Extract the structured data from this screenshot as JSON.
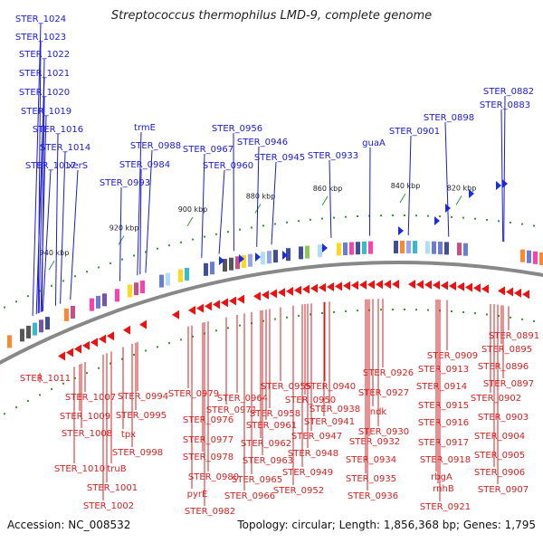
{
  "title": "Streptococcus thermophilus LMD-9, complete genome",
  "accession": "Accession: NC_008532",
  "topology": "Topology: circular; Length: 1,856,368 bp; Genes: 1,795",
  "colors": {
    "top_label": "#1a1ad6",
    "bottom_label": "#d42020",
    "backbone": "#888888",
    "tick": "#2e9a2e"
  },
  "ruler_ticks": [
    "820 kbp",
    "840 kbp",
    "860 kbp",
    "880 kbp",
    "900 kbp",
    "920 kbp",
    "940 kbp"
  ],
  "top_genes": [
    "STER_0882",
    "STER_0883",
    "STER_0898",
    "STER_0901",
    "guaA",
    "STER_0933",
    "STER_0945",
    "STER_0946",
    "STER_0956",
    "STER_0960",
    "STER_0967",
    "STER_0984",
    "STER_0988",
    "trmE",
    "STER_0993",
    "xerS",
    "STER_1014",
    "STER_1016",
    "STER_1017",
    "STER_1019",
    "STER_1020",
    "STER_1021",
    "STER_1022",
    "STER_1023",
    "STER_1024"
  ],
  "bottom_genes": [
    "STER_0891",
    "STER_0895",
    "STER_0896",
    "STER_0897",
    "STER_0902",
    "STER_0903",
    "STER_0904",
    "STER_0905",
    "STER_0906",
    "STER_0907",
    "STER_0909",
    "STER_0913",
    "STER_0914",
    "STER_0915",
    "STER_0916",
    "STER_0917",
    "STER_0918",
    "rbgA",
    "rnhB",
    "STER_0921",
    "STER_0926",
    "STER_0927",
    "ndk",
    "STER_0930",
    "STER_0932",
    "STER_0934",
    "STER_0935",
    "STER_0936",
    "STER_0938",
    "STER_0940",
    "STER_0941",
    "STER_0947",
    "STER_0948",
    "STER_0949",
    "STER_0950",
    "STER_0952",
    "STER_0955",
    "STER_0958",
    "STER_0961",
    "STER_0962",
    "STER_0963",
    "STER_0964",
    "STER_0965",
    "STER_0966",
    "STER_0971",
    "STER_0976",
    "STER_0977",
    "STER_0978",
    "STER_0979",
    "STER_0980",
    "pyrE",
    "STER_0982",
    "STER_0994",
    "STER_0995",
    "STER_0998",
    "tpx",
    "truB",
    "STER_1001",
    "STER_1002",
    "STER_1007",
    "STER_1008",
    "STER_1009",
    "STER_1010",
    "STER_1011"
  ]
}
